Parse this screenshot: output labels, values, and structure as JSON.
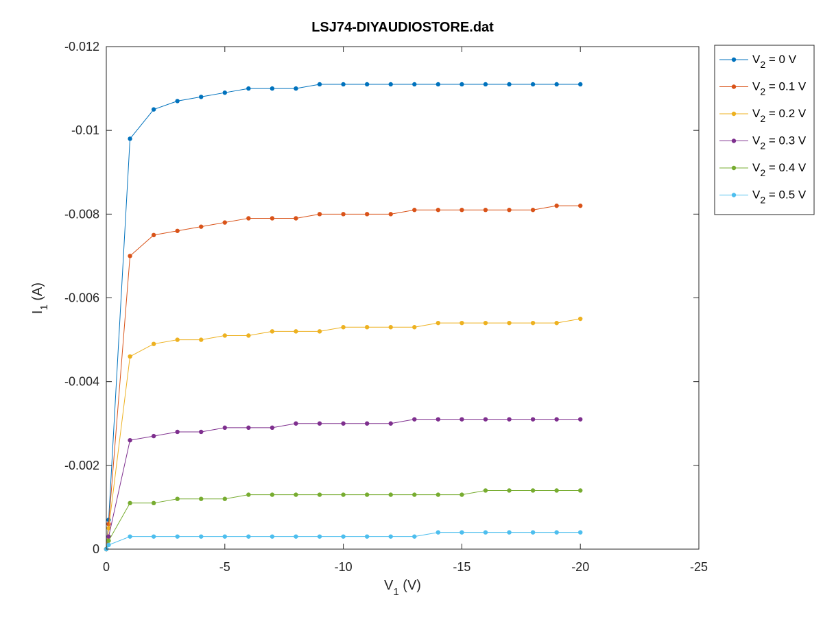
{
  "chart_data": {
    "type": "line",
    "title": "LSJ74-DIYAUDIOSTORE.dat",
    "xlabel": {
      "main": "V",
      "sub": "1",
      "unit": " (V)"
    },
    "ylabel": {
      "main": "I",
      "sub": "1",
      "unit": " (A)"
    },
    "xlim": [
      0,
      -25
    ],
    "ylim": [
      0,
      -0.012
    ],
    "x_ticks": [
      0,
      -5,
      -10,
      -15,
      -20,
      -25
    ],
    "x_tick_labels": [
      "0",
      "-5",
      "-10",
      "-15",
      "-20",
      "-25"
    ],
    "y_ticks": [
      0,
      -0.002,
      -0.004,
      -0.006,
      -0.008,
      -0.01,
      -0.012
    ],
    "y_tick_labels": [
      "0",
      "-0.002",
      "-0.004",
      "-0.006",
      "-0.008",
      "-0.01",
      "-0.012"
    ],
    "grid": false,
    "legend_position": "outside-top-right",
    "x": [
      0,
      -0.1,
      -1,
      -2,
      -3,
      -4,
      -5,
      -6,
      -7,
      -8,
      -9,
      -10,
      -11,
      -12,
      -13,
      -14,
      -15,
      -16,
      -17,
      -18,
      -19,
      -20
    ],
    "series": [
      {
        "name": "V",
        "name_sub": "2",
        "name_suffix": " = 0 V",
        "color": "#0072BD",
        "values": [
          0,
          -0.0007,
          -0.0098,
          -0.0105,
          -0.0107,
          -0.0108,
          -0.0109,
          -0.011,
          -0.011,
          -0.011,
          -0.0111,
          -0.0111,
          -0.0111,
          -0.0111,
          -0.0111,
          -0.0111,
          -0.0111,
          -0.0111,
          -0.0111,
          -0.0111,
          -0.0111,
          -0.0111
        ]
      },
      {
        "name": "V",
        "name_sub": "2",
        "name_suffix": " = 0.1 V",
        "color": "#D95319",
        "values": [
          0,
          -0.0006,
          -0.007,
          -0.0075,
          -0.0076,
          -0.0077,
          -0.0078,
          -0.0079,
          -0.0079,
          -0.0079,
          -0.008,
          -0.008,
          -0.008,
          -0.008,
          -0.0081,
          -0.0081,
          -0.0081,
          -0.0081,
          -0.0081,
          -0.0081,
          -0.0082,
          -0.0082
        ]
      },
      {
        "name": "V",
        "name_sub": "2",
        "name_suffix": " = 0.2 V",
        "color": "#EDB120",
        "values": [
          0,
          -0.0005,
          -0.0046,
          -0.0049,
          -0.005,
          -0.005,
          -0.0051,
          -0.0051,
          -0.0052,
          -0.0052,
          -0.0052,
          -0.0053,
          -0.0053,
          -0.0053,
          -0.0053,
          -0.0054,
          -0.0054,
          -0.0054,
          -0.0054,
          -0.0054,
          -0.0054,
          -0.0055
        ]
      },
      {
        "name": "V",
        "name_sub": "2",
        "name_suffix": " = 0.3 V",
        "color": "#7E2F8E",
        "values": [
          0,
          -0.0003,
          -0.0026,
          -0.0027,
          -0.0028,
          -0.0028,
          -0.0029,
          -0.0029,
          -0.0029,
          -0.003,
          -0.003,
          -0.003,
          -0.003,
          -0.003,
          -0.0031,
          -0.0031,
          -0.0031,
          -0.0031,
          -0.0031,
          -0.0031,
          -0.0031,
          -0.0031
        ]
      },
      {
        "name": "V",
        "name_sub": "2",
        "name_suffix": " = 0.4 V",
        "color": "#77AC30",
        "values": [
          0,
          -0.0002,
          -0.0011,
          -0.0011,
          -0.0012,
          -0.0012,
          -0.0012,
          -0.0013,
          -0.0013,
          -0.0013,
          -0.0013,
          -0.0013,
          -0.0013,
          -0.0013,
          -0.0013,
          -0.0013,
          -0.0013,
          -0.0014,
          -0.0014,
          -0.0014,
          -0.0014,
          -0.0014
        ]
      },
      {
        "name": "V",
        "name_sub": "2",
        "name_suffix": " = 0.5 V",
        "color": "#4DBEEE",
        "values": [
          0,
          -0.0001,
          -0.0003,
          -0.0003,
          -0.0003,
          -0.0003,
          -0.0003,
          -0.0003,
          -0.0003,
          -0.0003,
          -0.0003,
          -0.0003,
          -0.0003,
          -0.0003,
          -0.0003,
          -0.0004,
          -0.0004,
          -0.0004,
          -0.0004,
          -0.0004,
          -0.0004,
          -0.0004
        ]
      }
    ]
  }
}
